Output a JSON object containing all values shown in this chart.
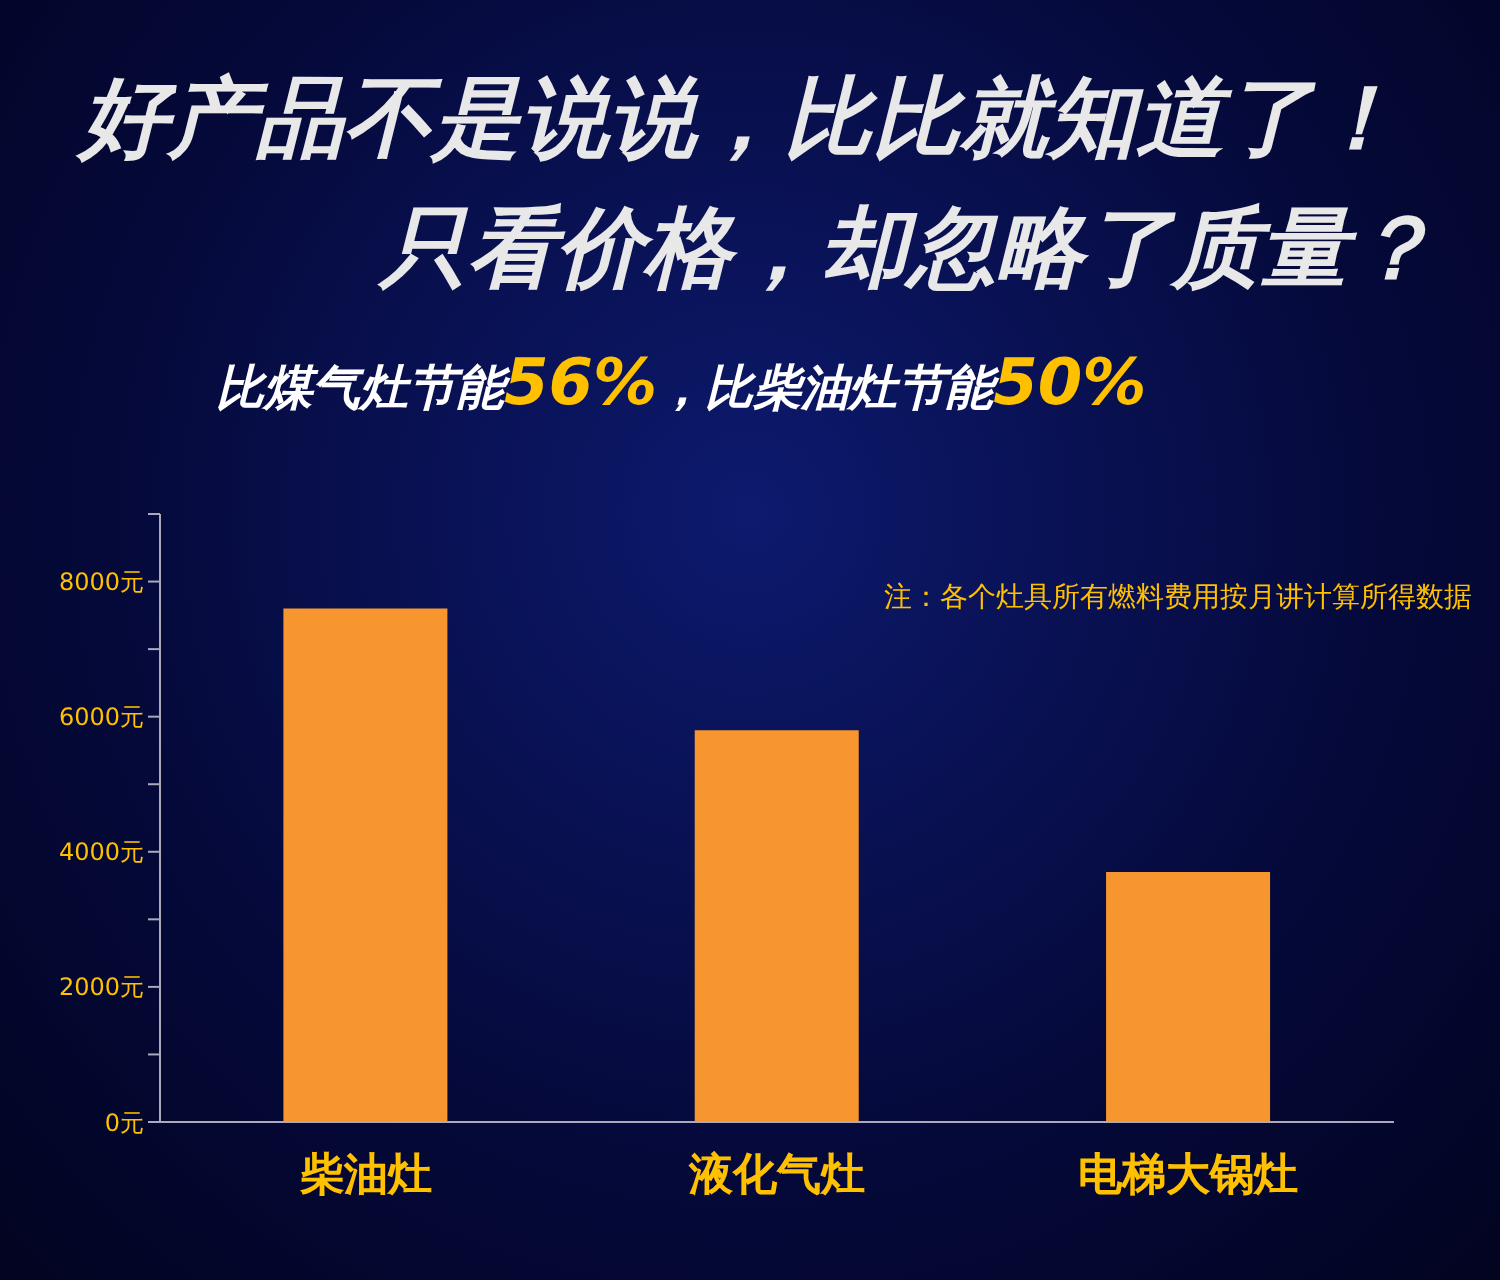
{
  "chart_data": {
    "type": "bar",
    "title": "好产品不是说说，比比就知道了！",
    "subtitle": "只看价格，却忽略了质量？",
    "annotations": [
      "比煤气灶节能56%，比柴油灶节能50%",
      "注：各个灶具所有燃料费用按月讲计算所得数据"
    ],
    "categories": [
      "柴油灶",
      "液化气灶",
      "电梯大锅灶"
    ],
    "values": [
      7600,
      5800,
      3700
    ],
    "color": "#f7962e",
    "ylim": [
      0,
      9000
    ],
    "yticks": [
      {
        "value": 0,
        "label": "0元"
      },
      {
        "value": 1000,
        "label": null
      },
      {
        "value": 2000,
        "label": "2000元"
      },
      {
        "value": 3000,
        "label": null
      },
      {
        "value": 4000,
        "label": "4000元"
      },
      {
        "value": 5000,
        "label": null
      },
      {
        "value": 6000,
        "label": "6000元"
      },
      {
        "value": 7000,
        "label": null
      },
      {
        "value": 8000,
        "label": "8000元"
      },
      {
        "value": 9000,
        "label": null
      }
    ],
    "grid": false,
    "legend": false
  }
}
